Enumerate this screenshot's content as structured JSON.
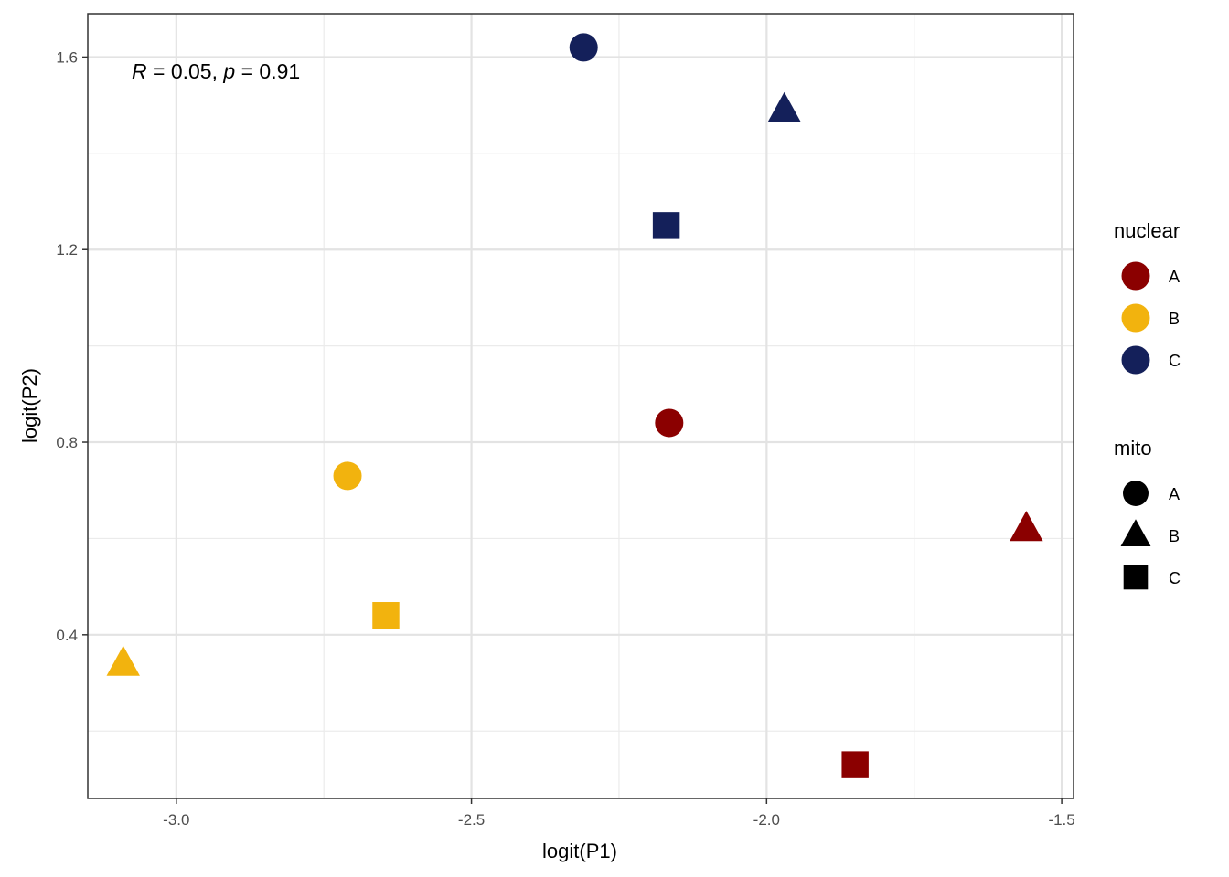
{
  "chart_data": {
    "type": "scatter",
    "xlabel": "logit(P1)",
    "ylabel": "logit(P2)",
    "xlim": [
      -3.15,
      -1.48
    ],
    "ylim": [
      0.06,
      1.69
    ],
    "x_ticks": [
      -3.0,
      -2.5,
      -2.0,
      -1.5
    ],
    "x_tick_labels": [
      "-3.0",
      "-2.5",
      "-2.0",
      "-1.5"
    ],
    "y_ticks": [
      0.4,
      0.8,
      1.2,
      1.6
    ],
    "y_tick_labels": [
      "0.4",
      "0.8",
      "1.2",
      "1.6"
    ],
    "grid": true,
    "annotation": {
      "r_label": "R",
      "r_value": " = 0.05, ",
      "p_label": "p",
      "p_value": " = 0.91"
    },
    "legend_placement": "right",
    "legends": [
      {
        "title": "nuclear",
        "items": [
          {
            "label": "A",
            "color": "#8B0000"
          },
          {
            "label": "B",
            "color": "#F2B30E"
          },
          {
            "label": "C",
            "color": "#14205A"
          }
        ]
      },
      {
        "title": "mito",
        "items": [
          {
            "label": "A",
            "shape": "circle"
          },
          {
            "label": "B",
            "shape": "triangle"
          },
          {
            "label": "C",
            "shape": "square"
          }
        ]
      }
    ],
    "points": [
      {
        "x": -2.31,
        "y": 1.62,
        "nuclear": "C",
        "mito": "A"
      },
      {
        "x": -1.97,
        "y": 1.49,
        "nuclear": "C",
        "mito": "B"
      },
      {
        "x": -2.17,
        "y": 1.25,
        "nuclear": "C",
        "mito": "C"
      },
      {
        "x": -2.165,
        "y": 0.84,
        "nuclear": "A",
        "mito": "A"
      },
      {
        "x": -1.56,
        "y": 0.62,
        "nuclear": "A",
        "mito": "B"
      },
      {
        "x": -1.85,
        "y": 0.13,
        "nuclear": "A",
        "mito": "C"
      },
      {
        "x": -2.71,
        "y": 0.73,
        "nuclear": "B",
        "mito": "A"
      },
      {
        "x": -3.09,
        "y": 0.34,
        "nuclear": "B",
        "mito": "B"
      },
      {
        "x": -2.645,
        "y": 0.44,
        "nuclear": "B",
        "mito": "C"
      }
    ]
  }
}
